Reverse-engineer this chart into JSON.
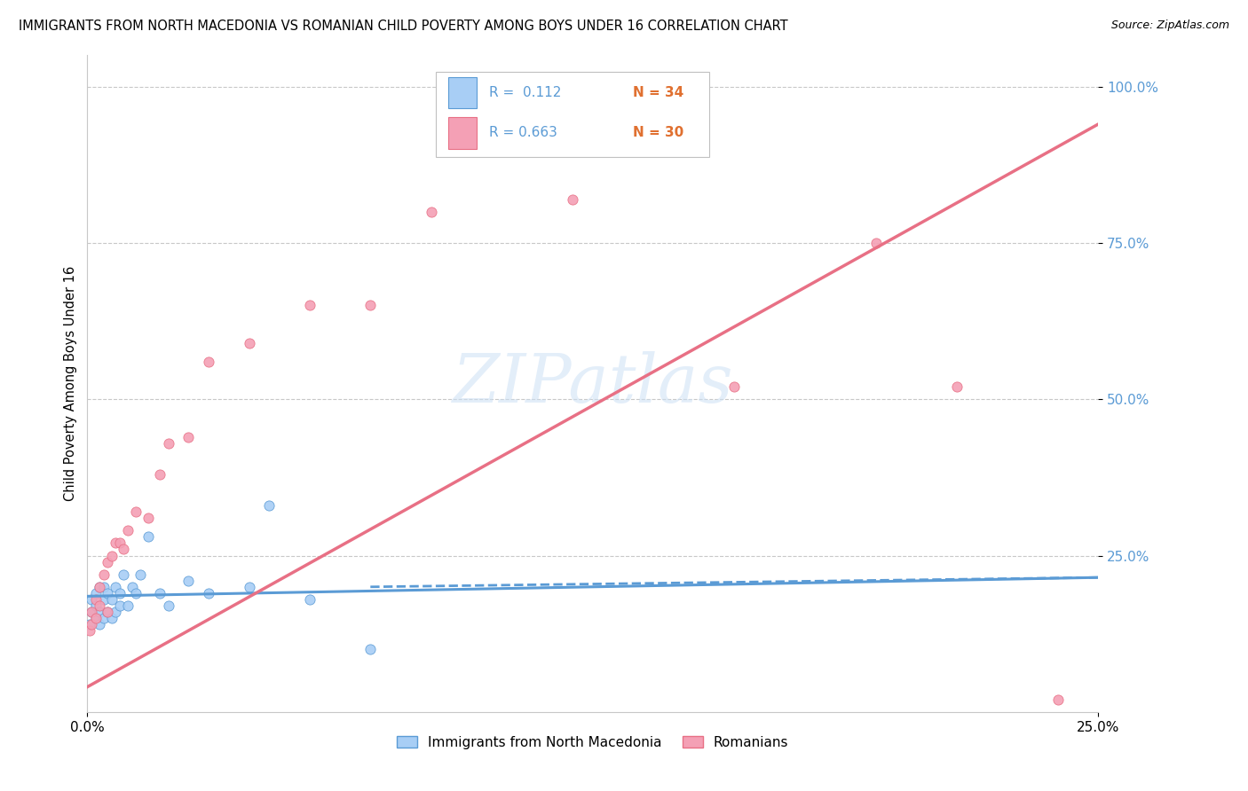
{
  "title": "IMMIGRANTS FROM NORTH MACEDONIA VS ROMANIAN CHILD POVERTY AMONG BOYS UNDER 16 CORRELATION CHART",
  "source": "Source: ZipAtlas.com",
  "ylabel": "Child Poverty Among Boys Under 16",
  "xlim": [
    0.0,
    0.25
  ],
  "ylim": [
    0.0,
    1.05
  ],
  "xtick_positions": [
    0.0,
    0.25
  ],
  "xtick_labels": [
    "0.0%",
    "25.0%"
  ],
  "ytick_positions": [
    0.25,
    0.5,
    0.75,
    1.0
  ],
  "ytick_labels": [
    "25.0%",
    "50.0%",
    "75.0%",
    "100.0%"
  ],
  "color_macedonia": "#a8cef5",
  "color_romania": "#f4a0b5",
  "color_line_macedonia": "#5b9bd5",
  "color_line_romania": "#e87085",
  "watermark_text": "ZIPatlas",
  "legend_r1": "R =  0.112",
  "legend_n1": "N = 34",
  "legend_r2": "R = 0.663",
  "legend_n2": "N = 30",
  "macedonia_scatter_x": [
    0.0005,
    0.001,
    0.001,
    0.002,
    0.002,
    0.002,
    0.003,
    0.003,
    0.003,
    0.004,
    0.004,
    0.004,
    0.005,
    0.005,
    0.006,
    0.006,
    0.007,
    0.007,
    0.008,
    0.008,
    0.009,
    0.01,
    0.011,
    0.012,
    0.013,
    0.015,
    0.018,
    0.02,
    0.025,
    0.03,
    0.04,
    0.045,
    0.055,
    0.07
  ],
  "macedonia_scatter_y": [
    0.14,
    0.16,
    0.18,
    0.15,
    0.17,
    0.19,
    0.14,
    0.16,
    0.2,
    0.15,
    0.18,
    0.2,
    0.16,
    0.19,
    0.15,
    0.18,
    0.16,
    0.2,
    0.17,
    0.19,
    0.22,
    0.17,
    0.2,
    0.19,
    0.22,
    0.28,
    0.19,
    0.17,
    0.21,
    0.19,
    0.2,
    0.33,
    0.18,
    0.1
  ],
  "romania_scatter_x": [
    0.0005,
    0.001,
    0.001,
    0.002,
    0.002,
    0.003,
    0.003,
    0.004,
    0.005,
    0.005,
    0.006,
    0.007,
    0.008,
    0.009,
    0.01,
    0.012,
    0.015,
    0.018,
    0.02,
    0.025,
    0.03,
    0.04,
    0.055,
    0.07,
    0.085,
    0.12,
    0.16,
    0.195,
    0.215,
    0.24
  ],
  "romania_scatter_y": [
    0.13,
    0.14,
    0.16,
    0.15,
    0.18,
    0.17,
    0.2,
    0.22,
    0.16,
    0.24,
    0.25,
    0.27,
    0.27,
    0.26,
    0.29,
    0.32,
    0.31,
    0.38,
    0.43,
    0.44,
    0.56,
    0.59,
    0.65,
    0.65,
    0.8,
    0.82,
    0.52,
    0.75,
    0.52,
    0.02
  ],
  "macedonia_line_x": [
    0.0,
    0.25
  ],
  "macedonia_line_y": [
    0.185,
    0.215
  ],
  "romania_line_x": [
    0.0,
    0.25
  ],
  "romania_line_y": [
    0.04,
    0.94
  ]
}
